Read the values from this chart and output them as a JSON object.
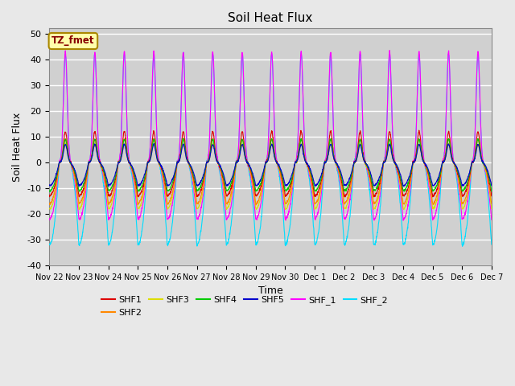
{
  "title": "Soil Heat Flux",
  "xlabel": "Time",
  "ylabel": "Soil Heat Flux",
  "ylim": [
    -40,
    52
  ],
  "background_color": "#e8e8e8",
  "plot_bg_color": "#d0d0d0",
  "grid_color": "#ffffff",
  "series_colors": {
    "SHF1": "#dd0000",
    "SHF2": "#ff8800",
    "SHF3": "#dddd00",
    "SHF4": "#00cc00",
    "SHF5": "#0000cc",
    "SHF_1": "#ff00ff",
    "SHF_2": "#00ddff"
  },
  "annotation_text": "TZ_fmet",
  "annotation_bg": "#ffffaa",
  "annotation_border": "#aa8800",
  "annotation_color": "#880000",
  "tick_labels": [
    "Nov 22",
    "Nov 23",
    "Nov 24",
    "Nov 25",
    "Nov 26",
    "Nov 27",
    "Nov 28",
    "Nov 29",
    "Nov 30",
    "Dec 1",
    "Dec 2",
    "Dec 3",
    "Dec 4",
    "Dec 5",
    "Dec 6",
    "Dec 7"
  ],
  "n_days": 15,
  "series_params": {
    "SHF1": {
      "day_peak": 12,
      "night_base": -13,
      "noise": 0.8
    },
    "SHF2": {
      "day_peak": 9,
      "night_base": -16,
      "noise": 0.7
    },
    "SHF3": {
      "day_peak": 7,
      "night_base": -18,
      "noise": 0.6
    },
    "SHF4": {
      "day_peak": 9,
      "night_base": -11,
      "noise": 0.6
    },
    "SHF5": {
      "day_peak": 7,
      "night_base": -9,
      "noise": 0.5
    },
    "SHF_1": {
      "day_peak": 43,
      "night_base": -22,
      "noise": 0.9
    },
    "SHF_2": {
      "day_peak": 42,
      "night_base": -32,
      "noise": 1.0
    }
  },
  "series_order": [
    "SHF_2",
    "SHF_1",
    "SHF3",
    "SHF2",
    "SHF1",
    "SHF4",
    "SHF5"
  ],
  "legend_order": [
    "SHF1",
    "SHF2",
    "SHF3",
    "SHF4",
    "SHF5",
    "SHF_1",
    "SHF_2"
  ]
}
